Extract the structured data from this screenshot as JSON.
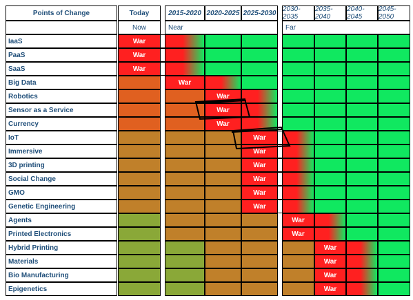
{
  "header": {
    "points_label": "Points of Change",
    "today_label": "Today",
    "periods": [
      "2015-2020",
      "2020-2025",
      "2025-2030",
      "2030-2035",
      "2035-2040",
      "2040-2045",
      "2045-2050"
    ],
    "now_label": "Now",
    "near_label": "Near",
    "far_label": "Far"
  },
  "war_label": "War",
  "colors": {
    "red": "#ff2020",
    "green": "#10e860",
    "brown": "#c0802a",
    "olive": "#8aa838",
    "orange": "#e06020"
  },
  "rows": [
    {
      "name": "IaaS",
      "war_col": 0
    },
    {
      "name": "PaaS",
      "war_col": 0
    },
    {
      "name": "SaaS",
      "war_col": 0
    },
    {
      "name": "Big Data",
      "war_col": 1
    },
    {
      "name": "Robotics",
      "war_col": 2
    },
    {
      "name": "Sensor as a Service",
      "war_col": 2
    },
    {
      "name": "Currency",
      "war_col": 2
    },
    {
      "name": "IoT",
      "war_col": 3
    },
    {
      "name": "Immersive",
      "war_col": 3
    },
    {
      "name": "3D printing",
      "war_col": 3
    },
    {
      "name": "Social Change",
      "war_col": 3
    },
    {
      "name": "GMO",
      "war_col": 3
    },
    {
      "name": "Genetic Engineering",
      "war_col": 3
    },
    {
      "name": "Agents",
      "war_col": 4
    },
    {
      "name": "Printed Electronics",
      "war_col": 4
    },
    {
      "name": "Hybrid Printing",
      "war_col": 5
    },
    {
      "name": "Materials",
      "war_col": 5
    },
    {
      "name": "Bio Manufacturing",
      "war_col": 5
    },
    {
      "name": "Epigenetics",
      "war_col": 5
    }
  ]
}
